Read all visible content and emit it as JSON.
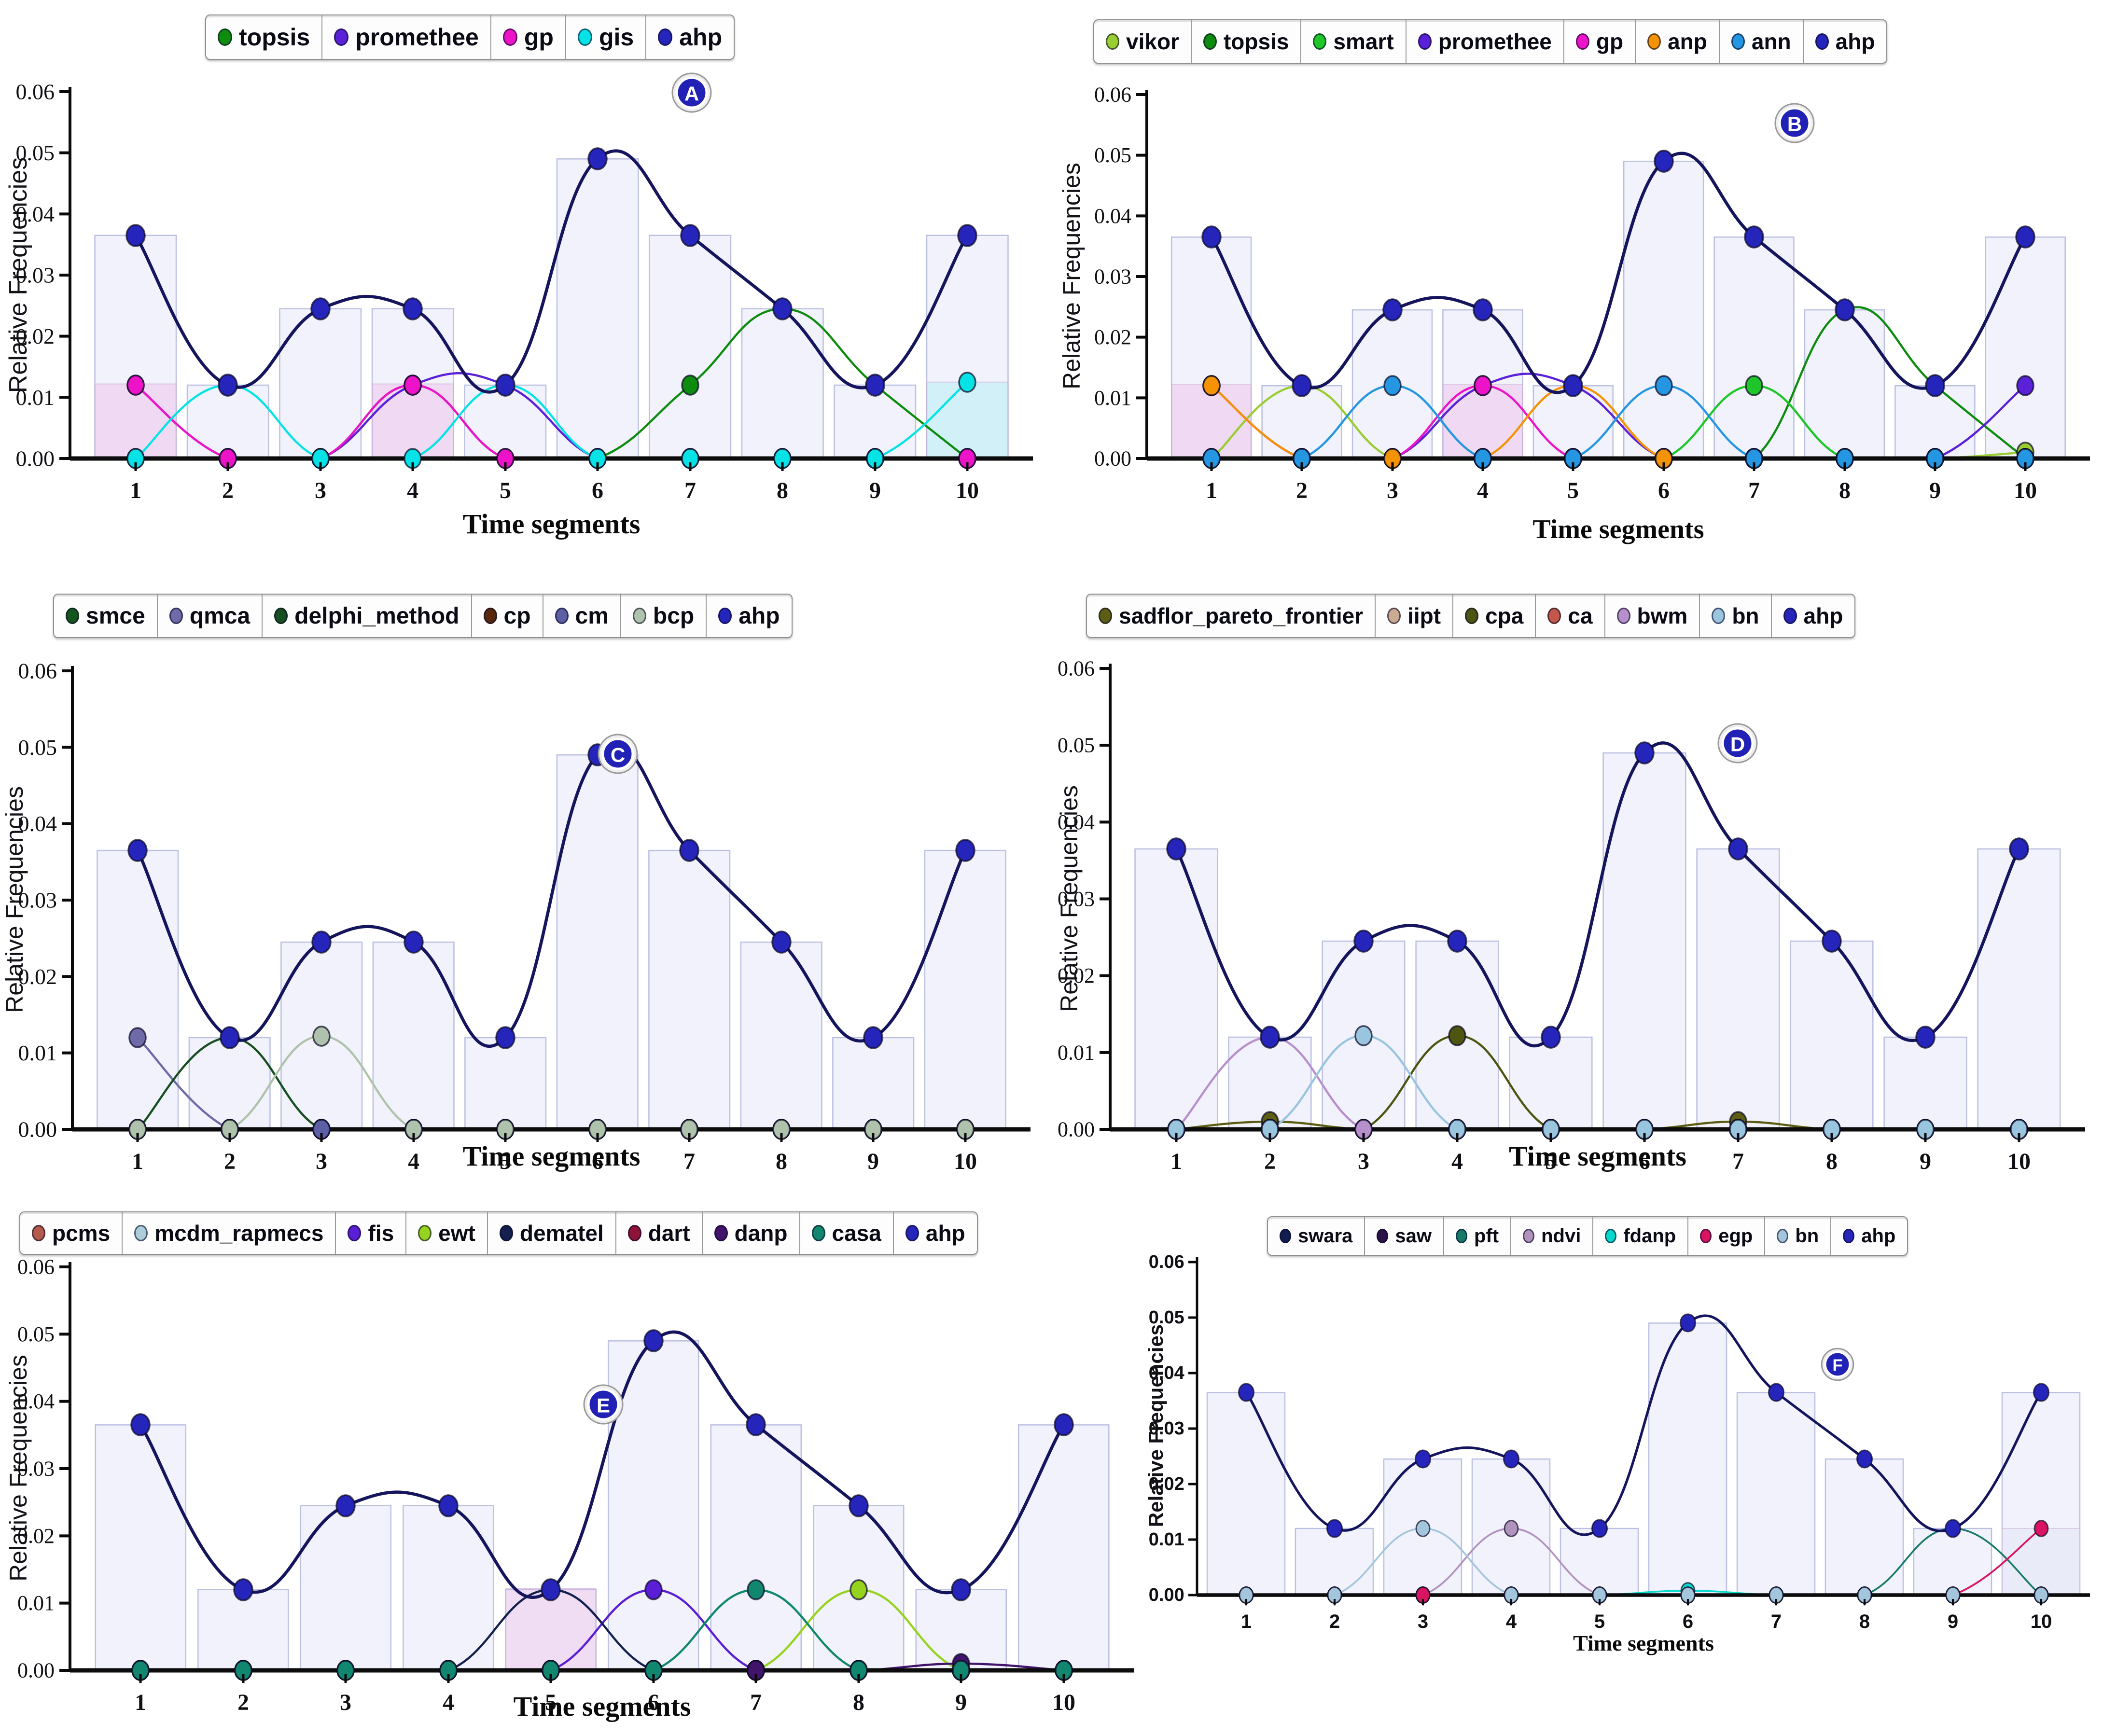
{
  "figure": {
    "type": "multi-panel-frequency-figure",
    "xlabel": "Time segments",
    "ylabel": "Relative Frequencies",
    "y_ticks": [
      "0.06",
      "0.05",
      "0.04",
      "0.03",
      "0.02",
      "0.01",
      "0.00"
    ],
    "x_ticks": [
      "1",
      "2",
      "3",
      "4",
      "5",
      "6",
      "7",
      "8",
      "9",
      "10"
    ],
    "badge_fill": "#2121b5",
    "badge_text_color": "#ffffff",
    "bar_fill": "rgba(229,232,247,0.55)",
    "bar_stroke": "rgba(183,189,224,0.95)",
    "axis_color": "#0a0a0a"
  },
  "chart_data": [
    {
      "id": "A",
      "type": "line",
      "badge": "A",
      "categories": [
        1,
        2,
        3,
        4,
        5,
        6,
        7,
        8,
        9,
        10
      ],
      "xlabel": "Time segments",
      "ylabel": "Relative Frequencies",
      "ylim": [
        0,
        0.06
      ],
      "legend_position": "top",
      "series": [
        {
          "name": "topsis",
          "color": "#0e8c0e",
          "values": [
            0,
            0,
            0,
            0.012,
            0,
            0,
            0.012,
            0.0245,
            0.012,
            0
          ]
        },
        {
          "name": "promethee",
          "color": "#5b21d8",
          "values": [
            0.012,
            0,
            0,
            0.012,
            0.012,
            0,
            0,
            0,
            0,
            0
          ]
        },
        {
          "name": "gp",
          "color": "#ec13c8",
          "values": [
            0.012,
            0,
            0,
            0.012,
            0,
            0,
            0,
            0,
            0,
            0
          ]
        },
        {
          "name": "gis",
          "color": "#06e3e6",
          "values": [
            0,
            0.012,
            0,
            0,
            0.012,
            0,
            0,
            0,
            0,
            0.0125
          ]
        },
        {
          "name": "ahp",
          "color": "#2525bb",
          "line": "#15155e",
          "values": [
            0.0365,
            0.012,
            0.0245,
            0.0245,
            0.012,
            0.049,
            0.0365,
            0.0245,
            0.012,
            0.0365
          ]
        }
      ],
      "bars": {
        "values": [
          0.0365,
          0.012,
          0.0245,
          0.0245,
          0.012,
          0.049,
          0.0365,
          0.0245,
          0.012,
          0.0365
        ],
        "extra": [
          {
            "x": 1,
            "h": 0.0122,
            "color": "rgba(240,160,225,0.30)"
          },
          {
            "x": 4,
            "h": 0.0122,
            "color": "rgba(240,160,225,0.30)"
          },
          {
            "x": 10,
            "h": 0.0125,
            "color": "rgba(140,235,240,0.30)"
          }
        ]
      }
    },
    {
      "id": "B",
      "type": "line",
      "badge": "B",
      "categories": [
        1,
        2,
        3,
        4,
        5,
        6,
        7,
        8,
        9,
        10
      ],
      "xlabel": "Time segments",
      "ylabel": "Relative Frequencies",
      "ylim": [
        0,
        0.06
      ],
      "legend_position": "top",
      "series": [
        {
          "name": "vikor",
          "color": "#9acd32",
          "values": [
            0,
            0.012,
            0,
            0,
            0,
            0,
            0,
            0,
            0,
            0.001
          ]
        },
        {
          "name": "topsis",
          "color": "#0e8c0e",
          "values": [
            0,
            0,
            0,
            0,
            0,
            0,
            0,
            0.0245,
            0.012,
            0
          ]
        },
        {
          "name": "smart",
          "color": "#1fc629",
          "values": [
            0,
            0,
            0,
            0,
            0,
            0,
            0.012,
            0,
            0,
            0
          ]
        },
        {
          "name": "promethee",
          "color": "#5b21d8",
          "values": [
            0.012,
            0,
            0,
            0.012,
            0.012,
            0,
            0,
            0,
            0,
            0.012
          ]
        },
        {
          "name": "gp",
          "color": "#ec13c8",
          "values": [
            0.012,
            0,
            0,
            0.012,
            0,
            0,
            0,
            0,
            0,
            0
          ]
        },
        {
          "name": "anp",
          "color": "#f59307",
          "values": [
            0.012,
            0,
            0,
            0,
            0.012,
            0,
            0,
            0,
            0,
            0
          ]
        },
        {
          "name": "ann",
          "color": "#2596e1",
          "values": [
            0,
            0,
            0.012,
            0,
            0,
            0.012,
            0,
            0,
            0,
            0
          ]
        },
        {
          "name": "ahp",
          "color": "#2525bb",
          "line": "#15155e",
          "values": [
            0.0365,
            0.012,
            0.0245,
            0.0245,
            0.012,
            0.049,
            0.0365,
            0.0245,
            0.012,
            0.0365
          ]
        }
      ],
      "bars": {
        "values": [
          0.0365,
          0.012,
          0.0245,
          0.0245,
          0.012,
          0.049,
          0.0365,
          0.0245,
          0.012,
          0.0365
        ],
        "extra": [
          {
            "x": 1,
            "h": 0.0122,
            "color": "rgba(240,160,225,0.30)"
          },
          {
            "x": 4,
            "h": 0.0122,
            "color": "rgba(240,160,225,0.30)"
          }
        ]
      }
    },
    {
      "id": "C",
      "type": "line",
      "badge": "C",
      "categories": [
        1,
        2,
        3,
        4,
        5,
        6,
        7,
        8,
        9,
        10
      ],
      "xlabel": "Time segments",
      "ylabel": "Relative Frequencies",
      "ylim": [
        0,
        0.06
      ],
      "legend_position": "top",
      "series": [
        {
          "name": "smce",
          "color": "#14571c",
          "values": [
            0,
            0,
            0,
            0,
            0,
            0,
            0,
            0,
            0,
            0
          ]
        },
        {
          "name": "qmca",
          "color": "#6f6aa8",
          "values": [
            0.012,
            0,
            0,
            0,
            0,
            0,
            0,
            0,
            0,
            0
          ]
        },
        {
          "name": "delphi_method",
          "color": "#174f20",
          "values": [
            0,
            0.012,
            0,
            0,
            0,
            0,
            0,
            0,
            0,
            0
          ]
        },
        {
          "name": "cp",
          "color": "#57280b",
          "values": [
            0,
            0,
            0,
            0,
            0,
            0,
            0,
            0,
            0,
            0
          ]
        },
        {
          "name": "cm",
          "color": "#5d5fa5",
          "values": [
            0,
            0,
            0,
            0,
            0,
            0,
            0,
            0,
            0,
            0
          ]
        },
        {
          "name": "bcp",
          "color": "#afc2ab",
          "values": [
            0,
            0,
            0.0122,
            0,
            0,
            0,
            0,
            0,
            0,
            0
          ]
        },
        {
          "name": "ahp",
          "color": "#2525bb",
          "line": "#15155e",
          "values": [
            0.0365,
            0.012,
            0.0245,
            0.0245,
            0.012,
            0.049,
            0.0365,
            0.0245,
            0.012,
            0.0365
          ]
        }
      ],
      "bars": {
        "values": [
          0.0365,
          0.012,
          0.0245,
          0.0245,
          0.012,
          0.049,
          0.0365,
          0.0245,
          0.012,
          0.0365
        ],
        "extra": []
      }
    },
    {
      "id": "D",
      "type": "line",
      "badge": "D",
      "categories": [
        1,
        2,
        3,
        4,
        5,
        6,
        7,
        8,
        9,
        10
      ],
      "xlabel": "Time segments",
      "ylabel": "Relative Frequencies",
      "ylim": [
        0,
        0.06
      ],
      "legend_position": "top",
      "series": [
        {
          "name": "sadflor_pareto_frontier",
          "color": "#5d5e13",
          "values": [
            0,
            0.001,
            0,
            0,
            0,
            0,
            0.001,
            0,
            0,
            0
          ]
        },
        {
          "name": "iipt",
          "color": "#c9aa92",
          "values": [
            0,
            0,
            0,
            0,
            0,
            0,
            0,
            0,
            0,
            0
          ]
        },
        {
          "name": "cpa",
          "color": "#4e5511",
          "values": [
            0,
            0,
            0,
            0.0122,
            0,
            0,
            0,
            0,
            0,
            0
          ]
        },
        {
          "name": "ca",
          "color": "#c2574a",
          "values": [
            0,
            0,
            0,
            0,
            0,
            0,
            0,
            0,
            0,
            0
          ]
        },
        {
          "name": "bwm",
          "color": "#b78fcb",
          "values": [
            0,
            0.012,
            0,
            0,
            0,
            0,
            0,
            0,
            0,
            0
          ]
        },
        {
          "name": "bn",
          "color": "#99c5de",
          "values": [
            0,
            0,
            0.0122,
            0,
            0,
            0,
            0,
            0,
            0,
            0
          ]
        },
        {
          "name": "ahp",
          "color": "#2525bb",
          "line": "#15155e",
          "values": [
            0.0365,
            0.012,
            0.0245,
            0.0245,
            0.012,
            0.049,
            0.0365,
            0.0245,
            0.012,
            0.0365
          ]
        }
      ],
      "bars": {
        "values": [
          0.0365,
          0.012,
          0.0245,
          0.0245,
          0.012,
          0.049,
          0.0365,
          0.0245,
          0.012,
          0.0365
        ],
        "extra": []
      }
    },
    {
      "id": "E",
      "type": "line",
      "badge": "E",
      "categories": [
        1,
        2,
        3,
        4,
        5,
        6,
        7,
        8,
        9,
        10
      ],
      "xlabel": "Time segments",
      "ylabel": "Relative Frequencies",
      "ylim": [
        0,
        0.06
      ],
      "legend_position": "top",
      "series": [
        {
          "name": "pcms",
          "color": "#b55b4b",
          "values": [
            0,
            0,
            0,
            0,
            0,
            0,
            0,
            0,
            0,
            0
          ]
        },
        {
          "name": "mcdm_rapmecs",
          "color": "#abccd8",
          "values": [
            0,
            0,
            0,
            0,
            0,
            0,
            0,
            0,
            0,
            0
          ]
        },
        {
          "name": "fis",
          "color": "#5a1ed6",
          "values": [
            0,
            0,
            0,
            0,
            0,
            0.012,
            0,
            0,
            0,
            0
          ]
        },
        {
          "name": "ewt",
          "color": "#96d31f",
          "values": [
            0,
            0,
            0,
            0,
            0,
            0,
            0,
            0.012,
            0,
            0
          ]
        },
        {
          "name": "dematel",
          "color": "#14204e",
          "values": [
            0,
            0,
            0,
            0,
            0.012,
            0,
            0,
            0,
            0,
            0
          ]
        },
        {
          "name": "dart",
          "color": "#8e1338",
          "values": [
            0,
            0,
            0,
            0,
            0,
            0,
            0,
            0,
            0,
            0
          ]
        },
        {
          "name": "danp",
          "color": "#41136b",
          "values": [
            0,
            0,
            0,
            0,
            0,
            0,
            0,
            0,
            0.001,
            0
          ]
        },
        {
          "name": "casa",
          "color": "#12876f",
          "values": [
            0,
            0,
            0,
            0,
            0,
            0,
            0.012,
            0,
            0,
            0
          ]
        },
        {
          "name": "ahp",
          "color": "#2525bb",
          "line": "#15155e",
          "values": [
            0.0365,
            0.012,
            0.0245,
            0.0245,
            0.012,
            0.049,
            0.0365,
            0.0245,
            0.012,
            0.0365
          ]
        }
      ],
      "bars": {
        "values": [
          0.0365,
          0.012,
          0.0245,
          0.0245,
          0.012,
          0.049,
          0.0365,
          0.0245,
          0.012,
          0.0365
        ],
        "extra": [
          {
            "x": 5,
            "h": 0.0122,
            "color": "rgba(240,160,225,0.25)"
          }
        ]
      }
    },
    {
      "id": "F",
      "type": "line",
      "badge": "F",
      "categories": [
        1,
        2,
        3,
        4,
        5,
        6,
        7,
        8,
        9,
        10
      ],
      "xlabel": "Time segments",
      "ylabel": "Relative Frequencies",
      "ylim": [
        0,
        0.06
      ],
      "legend_position": "top",
      "series": [
        {
          "name": "swara",
          "color": "#131c4e",
          "values": [
            0,
            0,
            0,
            0,
            0,
            0,
            0,
            0,
            0,
            0
          ]
        },
        {
          "name": "saw",
          "color": "#2c1248",
          "values": [
            0,
            0,
            0,
            0,
            0,
            0,
            0,
            0,
            0,
            0
          ]
        },
        {
          "name": "pft",
          "color": "#187a6a",
          "values": [
            0,
            0,
            0,
            0,
            0,
            0,
            0,
            0,
            0.012,
            0
          ]
        },
        {
          "name": "ndvi",
          "color": "#b192bd",
          "values": [
            0,
            0,
            0,
            0.012,
            0,
            0,
            0,
            0,
            0,
            0
          ]
        },
        {
          "name": "fdanp",
          "color": "#06d8cc",
          "values": [
            0,
            0,
            0,
            0,
            0,
            0.0008,
            0,
            0,
            0,
            0
          ]
        },
        {
          "name": "egp",
          "color": "#d91563",
          "values": [
            0,
            0,
            0,
            0,
            0,
            0,
            0,
            0,
            0,
            0.012
          ]
        },
        {
          "name": "bn",
          "color": "#a3c6dc",
          "values": [
            0,
            0,
            0.012,
            0,
            0,
            0,
            0,
            0,
            0,
            0
          ]
        },
        {
          "name": "ahp",
          "color": "#2525bb",
          "line": "#15155e",
          "values": [
            0.0365,
            0.012,
            0.0245,
            0.0245,
            0.012,
            0.049,
            0.0365,
            0.0245,
            0.012,
            0.0365
          ]
        }
      ],
      "bars": {
        "values": [
          0.0365,
          0.012,
          0.0245,
          0.0245,
          0.012,
          0.049,
          0.0365,
          0.0245,
          0.012,
          0.0365
        ],
        "extra": [
          {
            "x": 10,
            "h": 0.012,
            "color": "rgba(229,232,247,0.6)"
          }
        ]
      }
    }
  ]
}
